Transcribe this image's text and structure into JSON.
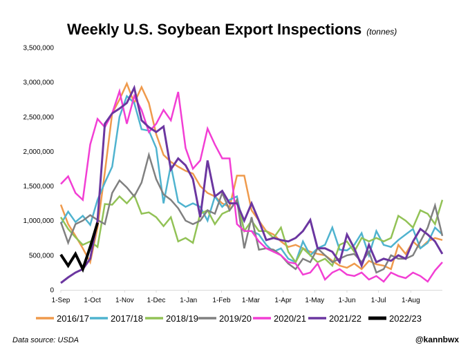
{
  "chart_data": {
    "type": "line",
    "title": "Weekly U.S. Soybean Export Inspections",
    "subtitle": "(tonnes)",
    "xlabel": "",
    "ylabel": "",
    "x_unit": "week index from 1-Sep (0-52)",
    "xlim": [
      0,
      52
    ],
    "ylim": [
      0,
      3500000
    ],
    "yticks": [
      0,
      500000,
      1000000,
      1500000,
      2000000,
      2500000,
      3000000,
      3500000
    ],
    "ytick_labels": [
      "0",
      "500,000",
      "1,000,000",
      "1,500,000",
      "2,000,000",
      "2,500,000",
      "3,000,000",
      "3,500,000"
    ],
    "xticks": [
      0,
      4.3,
      8.7,
      13,
      17.4,
      21.9,
      25.9,
      30.3,
      34.6,
      39,
      43.3,
      47.7
    ],
    "xtick_labels": [
      "1-Sep",
      "1-Oct",
      "1-Nov",
      "1-Dec",
      "1-Jan",
      "1-Feb",
      "1-Mar",
      "1-Apr",
      "1-May",
      "1-Jun",
      "1-Jul",
      "1-Aug"
    ],
    "grid": false,
    "legend_position": "bottom",
    "series": [
      {
        "name": "2016/17",
        "color": "#ef9a4c",
        "width": 2.5,
        "values": [
          1230000,
          950000,
          780000,
          600000,
          400000,
          900000,
          1700000,
          2550000,
          2750000,
          2980000,
          2700000,
          2930000,
          2700000,
          2250000,
          1950000,
          1850000,
          1780000,
          1720000,
          1680000,
          1500000,
          1400000,
          1350000,
          1250000,
          1200000,
          1650000,
          1650000,
          1150000,
          1000000,
          850000,
          800000,
          700000,
          620000,
          650000,
          600000,
          550000,
          520000,
          500000,
          420000,
          350000,
          320000,
          380000,
          300000,
          420000,
          370000,
          350000,
          300000,
          650000,
          520000,
          700000,
          600000,
          700000,
          750000,
          720000
        ]
      },
      {
        "name": "2017/18",
        "color": "#4fb3cf",
        "width": 2.5,
        "values": [
          950000,
          1130000,
          980000,
          1070000,
          940000,
          1300000,
          1550000,
          1780000,
          2500000,
          2800000,
          2700000,
          2320000,
          2300000,
          2050000,
          1250000,
          1800000,
          1270000,
          1200000,
          1250000,
          1200000,
          1000000,
          1350000,
          1200000,
          1300000,
          1350000,
          850000,
          850000,
          800000,
          650000,
          550000,
          600000,
          450000,
          400000,
          700000,
          500000,
          600000,
          650000,
          900000,
          580000,
          570000,
          650000,
          820000,
          500000,
          850000,
          650000,
          620000,
          720000,
          800000,
          880000,
          600000,
          680000,
          900000,
          800000
        ]
      },
      {
        "name": "2018/19",
        "color": "#92c256",
        "width": 2.5,
        "values": [
          1050000,
          880000,
          760000,
          650000,
          700000,
          620000,
          1240000,
          1230000,
          1350000,
          1250000,
          1370000,
          1100000,
          1120000,
          1050000,
          920000,
          1050000,
          700000,
          750000,
          680000,
          1100000,
          1150000,
          950000,
          1100000,
          1150000,
          1300000,
          850000,
          1000000,
          850000,
          850000,
          750000,
          900000,
          550000,
          400000,
          600000,
          500000,
          400000,
          450000,
          350000,
          650000,
          700000,
          550000,
          750000,
          700000,
          750000,
          700000,
          750000,
          1070000,
          1000000,
          900000,
          1150000,
          1100000,
          950000,
          1300000
        ]
      },
      {
        "name": "2019/20",
        "color": "#808080",
        "width": 2.5,
        "values": [
          980000,
          680000,
          950000,
          1000000,
          1080000,
          1010000,
          950000,
          1400000,
          1580000,
          1480000,
          1350000,
          1550000,
          1950000,
          1600000,
          1380000,
          1300000,
          1180000,
          1000000,
          950000,
          1000000,
          1150000,
          1100000,
          1400000,
          1150000,
          1300000,
          600000,
          1050000,
          580000,
          600000,
          580000,
          500000,
          380000,
          300000,
          450000,
          400000,
          600000,
          500000,
          400000,
          450000,
          500000,
          520000,
          400000,
          550000,
          250000,
          300000,
          500000,
          450000,
          450000,
          500000,
          700000,
          900000,
          1220000,
          780000
        ]
      },
      {
        "name": "2020/21",
        "color": "#f23ed4",
        "width": 2.5,
        "values": [
          1530000,
          1640000,
          1400000,
          1300000,
          2100000,
          2470000,
          2350000,
          2550000,
          2870000,
          2400000,
          2800000,
          2600000,
          2280000,
          2400000,
          2600000,
          2450000,
          2860000,
          2050000,
          1750000,
          1870000,
          2330000,
          2100000,
          1900000,
          1900000,
          950000,
          850000,
          850000,
          700000,
          600000,
          550000,
          500000,
          400000,
          380000,
          220000,
          250000,
          380000,
          150000,
          250000,
          300000,
          220000,
          200000,
          250000,
          150000,
          200000,
          120000,
          250000,
          200000,
          170000,
          250000,
          200000,
          120000,
          280000,
          400000
        ]
      },
      {
        "name": "2021/22",
        "color": "#6b36a0",
        "width": 3,
        "values": [
          100000,
          180000,
          250000,
          300000,
          450000,
          1000000,
          2400000,
          2550000,
          2620000,
          2700000,
          2920000,
          2450000,
          2350000,
          2280000,
          2360000,
          1740000,
          1900000,
          1800000,
          1600000,
          1050000,
          1870000,
          1350000,
          1430000,
          1250000,
          1250000,
          1000000,
          1250000,
          1000000,
          720000,
          750000,
          720000,
          700000,
          750000,
          850000,
          1010000,
          600000,
          600000,
          550000,
          400000,
          800000,
          600000,
          350000,
          650000,
          400000,
          450000,
          420000,
          500000,
          450000,
          700000,
          880000,
          800000,
          700000,
          520000
        ]
      },
      {
        "name": "2022/23",
        "color": "#000000",
        "width": 4,
        "values": [
          510000,
          350000,
          520000,
          300000,
          620000,
          970000
        ]
      }
    ]
  },
  "footer": {
    "source": "Data source: USDA",
    "handle": "@kannbwx"
  }
}
